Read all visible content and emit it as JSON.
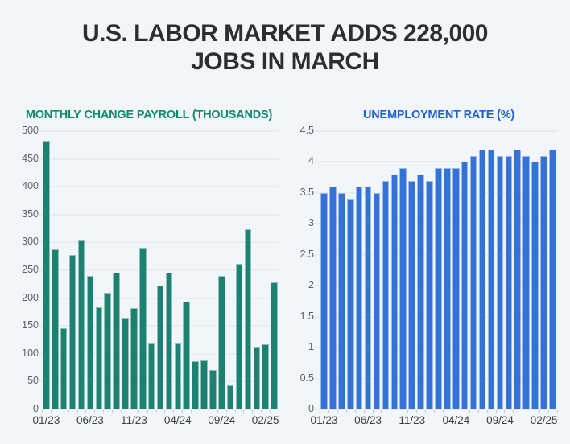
{
  "title": {
    "lines": [
      "U.S. LABOR MARKET ADDS 228,000",
      "JOBS IN MARCH"
    ],
    "full_text": "U.S. LABOR MARKET ADDS 228,000 JOBS IN MARCH"
  },
  "colors": {
    "background": "#f2f5f9",
    "title_text": "#2d2e30",
    "payroll_header": "#0d8c6a",
    "payroll_bar": "#1c8170",
    "unemployment_header": "#1d61d6",
    "unemployment_bar": "#3472d8",
    "gridline": "#e0e3e6",
    "axis_label": "#585f66"
  },
  "chart_data": [
    {
      "type": "bar",
      "title": "MONTHLY CHANGE PAYROLL (THOUSANDS)",
      "title_color": "#0d8c6a",
      "bar_color": "#1c8170",
      "categories": [
        "01/23",
        "02/23",
        "03/23",
        "04/23",
        "05/23",
        "06/23",
        "07/23",
        "08/23",
        "09/23",
        "10/23",
        "11/23",
        "12/23",
        "01/24",
        "02/24",
        "03/24",
        "04/24",
        "05/24",
        "06/24",
        "07/24",
        "08/24",
        "09/24",
        "10/24",
        "11/24",
        "12/24",
        "01/25",
        "02/25",
        "03/25"
      ],
      "values": [
        482,
        287,
        146,
        278,
        303,
        240,
        184,
        210,
        246,
        165,
        182,
        290,
        119,
        222,
        246,
        118,
        193,
        87,
        88,
        71,
        240,
        44,
        261,
        323,
        111,
        117,
        228
      ],
      "ymax": 500,
      "ylim": [
        0,
        500
      ],
      "grid": true,
      "legend": "none",
      "yticks": [
        {
          "value": 0,
          "label": "0"
        },
        {
          "value": 50,
          "label": "50"
        },
        {
          "value": 100,
          "label": "100"
        },
        {
          "value": 150,
          "label": "150"
        },
        {
          "value": 200,
          "label": "200"
        },
        {
          "value": 250,
          "label": "250"
        },
        {
          "value": 300,
          "label": "300"
        },
        {
          "value": 350,
          "label": "350"
        },
        {
          "value": 400,
          "label": "400"
        },
        {
          "value": 450,
          "label": "450"
        },
        {
          "value": 500,
          "label": "500"
        }
      ],
      "xticks": [
        {
          "index": 0,
          "label": "01/23"
        },
        {
          "index": 5,
          "label": "06/23"
        },
        {
          "index": 10,
          "label": "11/23"
        },
        {
          "index": 15,
          "label": "04/24"
        },
        {
          "index": 20,
          "label": "09/24"
        },
        {
          "index": 25,
          "label": "02/25"
        }
      ]
    },
    {
      "type": "bar",
      "title": "UNEMPLOYMENT RATE (%)",
      "title_color": "#1d61d6",
      "bar_color": "#3472d8",
      "categories": [
        "01/23",
        "02/23",
        "03/23",
        "04/23",
        "05/23",
        "06/23",
        "07/23",
        "08/23",
        "09/23",
        "10/23",
        "11/23",
        "12/23",
        "01/24",
        "02/24",
        "03/24",
        "04/24",
        "05/24",
        "06/24",
        "07/24",
        "08/24",
        "09/24",
        "10/24",
        "11/24",
        "12/24",
        "01/25",
        "02/25",
        "03/25"
      ],
      "values": [
        3.5,
        3.6,
        3.5,
        3.4,
        3.6,
        3.6,
        3.5,
        3.7,
        3.8,
        3.9,
        3.7,
        3.8,
        3.7,
        3.9,
        3.9,
        3.9,
        4.0,
        4.1,
        4.2,
        4.2,
        4.1,
        4.1,
        4.2,
        4.1,
        4.0,
        4.1,
        4.2
      ],
      "ymax": 4.5,
      "ylim": [
        0,
        4.5
      ],
      "grid": true,
      "legend": "none",
      "yticks": [
        {
          "value": 0,
          "label": "0"
        },
        {
          "value": 0.5,
          "label": "0.5"
        },
        {
          "value": 1,
          "label": "1"
        },
        {
          "value": 1.5,
          "label": "1.5"
        },
        {
          "value": 2,
          "label": "2"
        },
        {
          "value": 2.5,
          "label": "2.5"
        },
        {
          "value": 3,
          "label": "3"
        },
        {
          "value": 3.5,
          "label": "3.5"
        },
        {
          "value": 4,
          "label": "4"
        },
        {
          "value": 4.5,
          "label": "4.5"
        }
      ],
      "xticks": [
        {
          "index": 0,
          "label": "01/23"
        },
        {
          "index": 5,
          "label": "06/23"
        },
        {
          "index": 10,
          "label": "11/23"
        },
        {
          "index": 15,
          "label": "04/24"
        },
        {
          "index": 20,
          "label": "09/24"
        },
        {
          "index": 25,
          "label": "02/25"
        }
      ]
    }
  ]
}
